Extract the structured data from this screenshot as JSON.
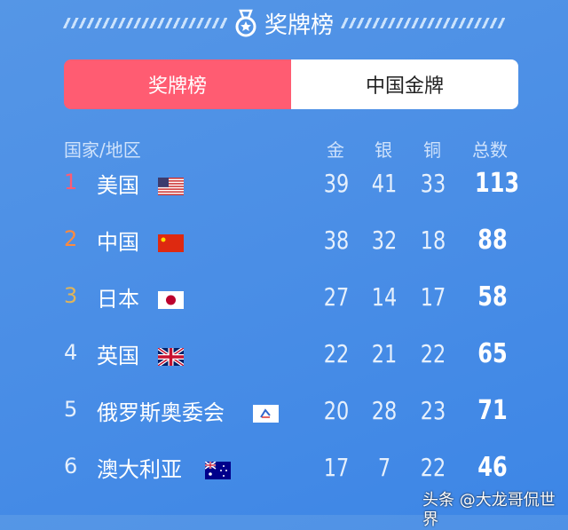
{
  "header": {
    "title": "奖牌榜",
    "icon": "medal-icon"
  },
  "tabs": [
    {
      "label": "奖牌榜",
      "active": true
    },
    {
      "label": "中国金牌",
      "active": false
    }
  ],
  "columns": {
    "country": "国家/地区",
    "gold": "金",
    "silver": "银",
    "bronze": "铜",
    "total": "总数"
  },
  "rows": [
    {
      "rank": "1",
      "name": "美国",
      "flag": "us",
      "gold": "39",
      "silver": "41",
      "bronze": "33",
      "total": "113"
    },
    {
      "rank": "2",
      "name": "中国",
      "flag": "cn",
      "gold": "38",
      "silver": "32",
      "bronze": "18",
      "total": "88"
    },
    {
      "rank": "3",
      "name": "日本",
      "flag": "jp",
      "gold": "27",
      "silver": "14",
      "bronze": "17",
      "total": "58"
    },
    {
      "rank": "4",
      "name": "英国",
      "flag": "gb",
      "gold": "22",
      "silver": "21",
      "bronze": "22",
      "total": "65"
    },
    {
      "rank": "5",
      "name": "俄罗斯奥委会",
      "flag": "roc",
      "gold": "20",
      "silver": "28",
      "bronze": "23",
      "total": "71"
    },
    {
      "rank": "6",
      "name": "澳大利亚",
      "flag": "au",
      "gold": "17",
      "silver": "7",
      "bronze": "22",
      "total": "46"
    }
  ],
  "colors": {
    "rank1": "#ff5c72",
    "rank2": "#ff8a3d",
    "rank3": "#e0b45a",
    "accent": "#ff5c72"
  },
  "watermark": "头条 @大龙哥侃世界"
}
